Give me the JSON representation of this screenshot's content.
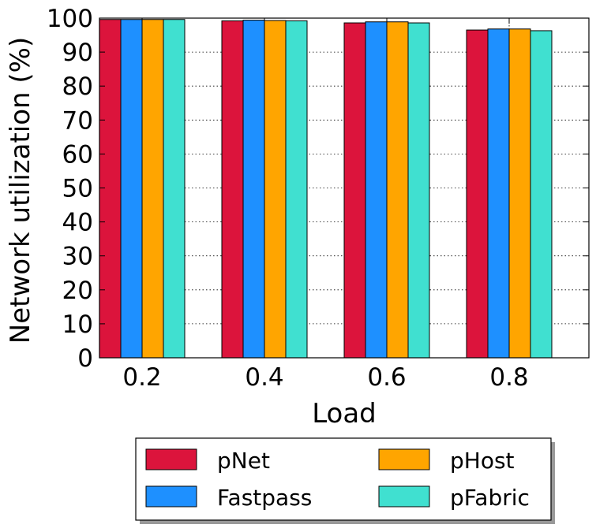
{
  "chart_data": {
    "type": "bar",
    "title": "",
    "xlabel": "Load",
    "ylabel": "Network utilization (%)",
    "categories": [
      "0.2",
      "0.4",
      "0.6",
      "0.8"
    ],
    "yticks": [
      "0",
      "10",
      "20",
      "30",
      "40",
      "50",
      "60",
      "70",
      "80",
      "90",
      "100"
    ],
    "ylim": [
      0,
      100
    ],
    "grid": true,
    "legend_position": "bottom",
    "series": [
      {
        "name": "pNet",
        "color": "#dc143c",
        "values": [
          99.6,
          99.2,
          98.6,
          96.5
        ]
      },
      {
        "name": "Fastpass",
        "color": "#1e90ff",
        "values": [
          99.6,
          99.4,
          98.9,
          96.8
        ]
      },
      {
        "name": "pHost",
        "color": "#ffa500",
        "values": [
          99.6,
          99.3,
          98.9,
          96.8
        ]
      },
      {
        "name": "pFabric",
        "color": "#40e0d0",
        "values": [
          99.6,
          99.2,
          98.6,
          96.3
        ]
      }
    ]
  }
}
